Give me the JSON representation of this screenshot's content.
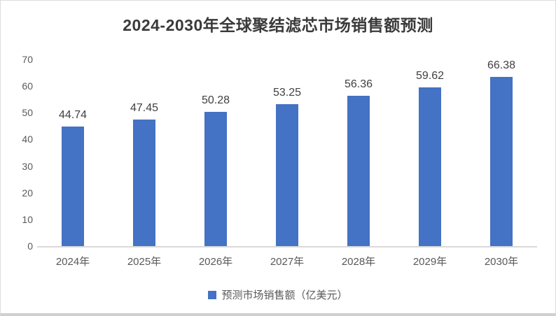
{
  "chart_data": {
    "type": "bar",
    "title": "2024-2030年全球聚结滤芯市场销售额预测",
    "categories": [
      "2024年",
      "2025年",
      "2026年",
      "2027年",
      "2028年",
      "2029年",
      "2030年"
    ],
    "values": [
      44.74,
      47.45,
      50.28,
      53.25,
      56.36,
      59.62,
      66.38
    ],
    "value_labels": [
      "44.74",
      "47.45",
      "50.28",
      "53.25",
      "56.36",
      "59.62",
      "66.38"
    ],
    "series_name": "预测市场销售额（亿美元）",
    "xlabel": "",
    "ylabel": "",
    "ylim": [
      0,
      70
    ],
    "y_ticks": [
      0,
      10,
      20,
      30,
      40,
      50,
      60,
      70
    ],
    "grid": false,
    "legend_position": "bottom",
    "bar_color": "#4472C4"
  },
  "legend": {
    "label": "预测市场销售额（亿美元）"
  },
  "colors": {
    "bar": "#4472C4",
    "axis_text": "#595959",
    "data_label_text": "#404040",
    "title_text": "#3a3a3a",
    "baseline": "#d9d9d9",
    "card_border": "#dcdcdc"
  }
}
